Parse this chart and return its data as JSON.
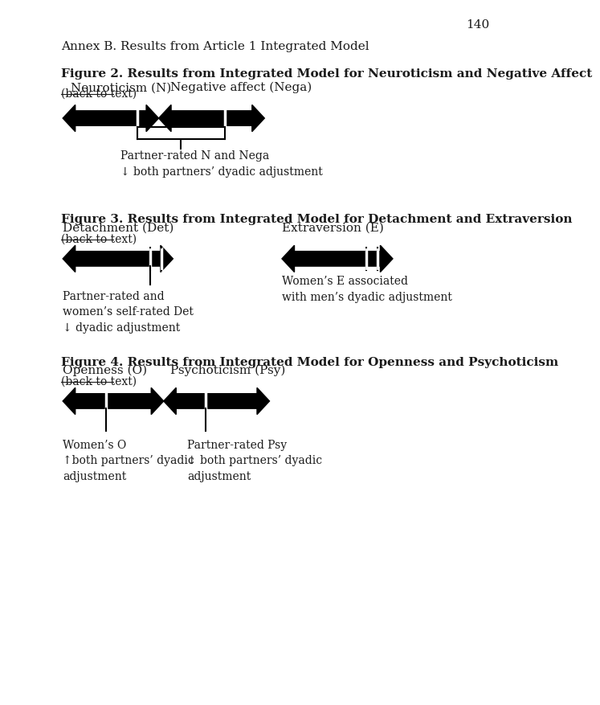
{
  "page_number": "140",
  "background_color": "#ffffff",
  "text_color": "#1a1a1a",
  "annex_title": "Annex B. Results from Article 1 Integrated Model",
  "fig2_title": "Figure 2. Results from Integrated Model for Neuroticism and Negative Affect",
  "fig2_link": "(back to text)",
  "fig2_label1": "Neuroticism (N)",
  "fig2_label2": "Negative affect (Nega)",
  "fig2_annotation": "Partner-rated N and Nega\n↓ both partners’ dyadic adjustment",
  "fig3_title": "Figure 3. Results from Integrated Model for Detachment and Extraversion",
  "fig3_link": "(back to text)",
  "fig3_label1": "Detachment (Det)",
  "fig3_label2": "Extraversion (E)",
  "fig3_annotation1": "Partner-rated and\nwomen’s self-rated Det\n↓ dyadic adjustment",
  "fig3_annotation2": "Women’s E associated\nwith men’s dyadic adjustment",
  "fig4_title": "Figure 4. Results from Integrated Model for Openness and Psychoticism",
  "fig4_link": "(back to text)",
  "fig4_label1": "Openness (O)",
  "fig4_label2": "Psychoticism (Psy)",
  "fig4_annotation1": "Women’s O\n↑both partners’ dyadic\nadjustment",
  "fig4_annotation2": "Partner-rated Psy\n↓ both partners’ dyadic\nadjustment"
}
